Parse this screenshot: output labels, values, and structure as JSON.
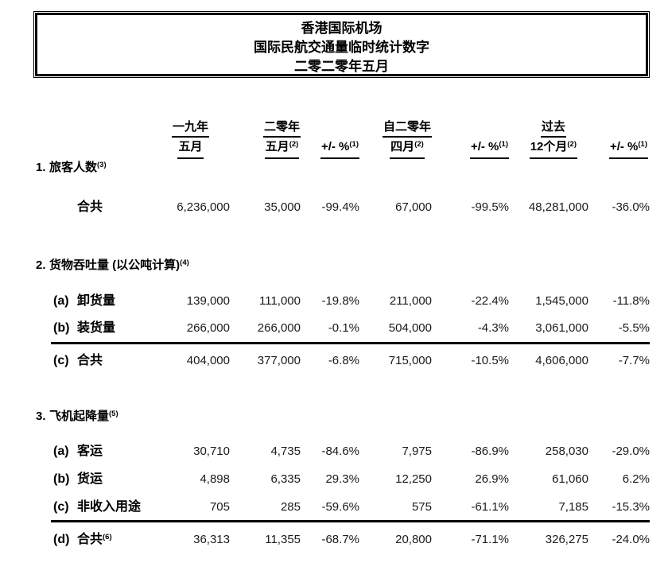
{
  "title_box": {
    "line1": "香港国际机场",
    "line2": "国际民航交通量临时统计数字",
    "line3": "二零二零年五月"
  },
  "header": {
    "cols": [
      {
        "line1": "一九年",
        "line2": "五月",
        "line2_sup": ""
      },
      {
        "line1": "二零年",
        "line2": "五月",
        "line2_sup": "(2)"
      },
      {
        "line1": "",
        "line2": "+/- %",
        "line2_sup": "(1)"
      },
      {
        "line1": "自二零年",
        "line2": "四月",
        "line2_sup": "(2)"
      },
      {
        "line1": "",
        "line2": "+/- %",
        "line2_sup": "(1)"
      },
      {
        "line1": "过去",
        "line2": "12个月",
        "line2_sup": "(2)"
      },
      {
        "line1": "",
        "line2": "+/- %",
        "line2_sup": "(1)"
      }
    ]
  },
  "sections": [
    {
      "num": "1.",
      "title": "旅客人数",
      "sup": "(3)",
      "rows": [
        {
          "marker": "",
          "label": "合共",
          "sup": "",
          "values": [
            "6,236,000",
            "35,000",
            "-99.4%",
            "67,000",
            "-99.5%",
            "48,281,000",
            "-36.0%"
          ]
        }
      ]
    },
    {
      "num": "2.",
      "title": "货物吞吐量 (以公吨计算)",
      "sup": "(4)",
      "rows": [
        {
          "marker": "(a)",
          "label": "卸货量",
          "sup": "",
          "values": [
            "139,000",
            "111,000",
            "-19.8%",
            "211,000",
            "-22.4%",
            "1,545,000",
            "-11.8%"
          ]
        },
        {
          "marker": "(b)",
          "label": "装货量",
          "sup": "",
          "values": [
            "266,000",
            "266,000",
            "-0.1%",
            "504,000",
            "-4.3%",
            "3,061,000",
            "-5.5%"
          ]
        },
        {
          "marker": "(c)",
          "label": "合共",
          "sup": "",
          "values": [
            "404,000",
            "377,000",
            "-6.8%",
            "715,000",
            "-10.5%",
            "4,606,000",
            "-7.7%"
          ]
        }
      ]
    },
    {
      "num": "3.",
      "title": "飞机起降量",
      "sup": "(5)",
      "rows": [
        {
          "marker": "(a)",
          "label": "客运",
          "sup": "",
          "values": [
            "30,710",
            "4,735",
            "-84.6%",
            "7,975",
            "-86.9%",
            "258,030",
            "-29.0%"
          ]
        },
        {
          "marker": "(b)",
          "label": "货运",
          "sup": "",
          "values": [
            "4,898",
            "6,335",
            "29.3%",
            "12,250",
            "26.9%",
            "61,060",
            "6.2%"
          ]
        },
        {
          "marker": "(c)",
          "label": "非收入用途",
          "sup": "",
          "values": [
            "705",
            "285",
            "-59.6%",
            "575",
            "-61.1%",
            "7,185",
            "-15.3%"
          ]
        },
        {
          "marker": "(d)",
          "label": "合共",
          "sup": "(6)",
          "values": [
            "36,313",
            "11,355",
            "-68.7%",
            "20,800",
            "-71.1%",
            "326,275",
            "-24.0%"
          ]
        }
      ]
    }
  ]
}
